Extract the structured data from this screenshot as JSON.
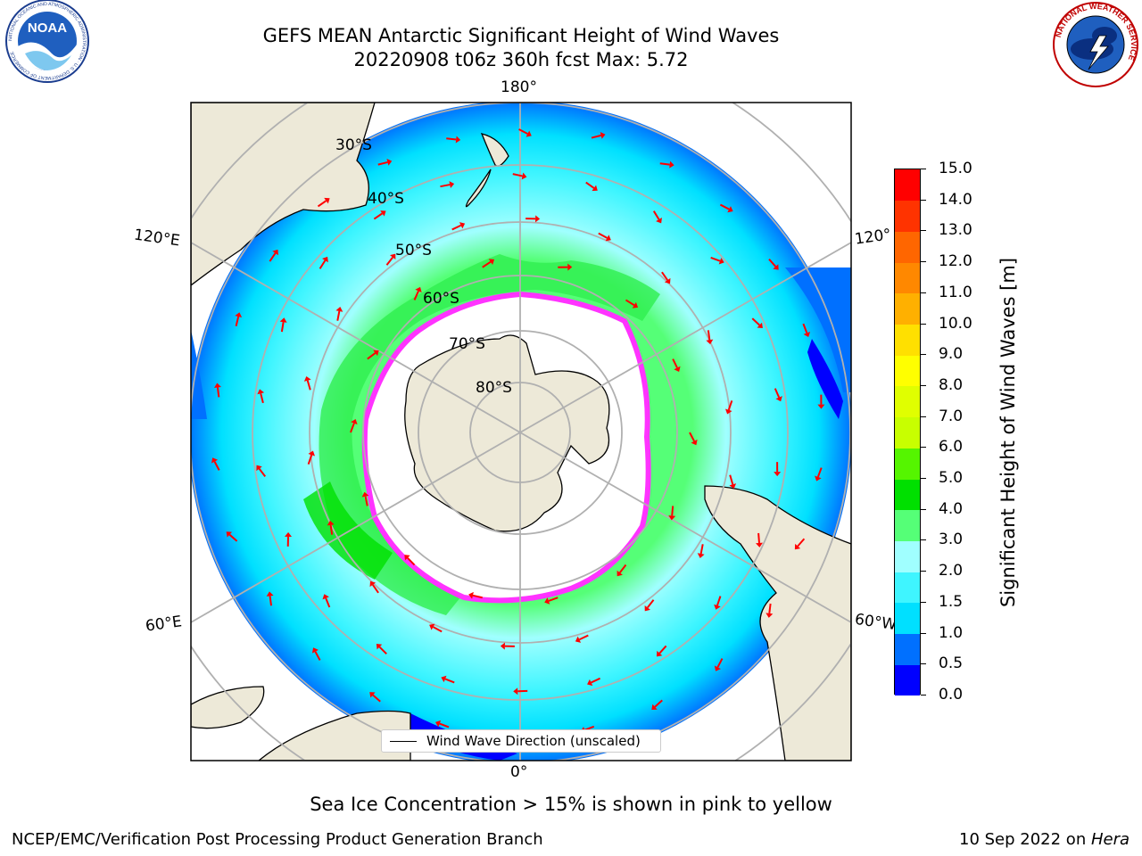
{
  "header": {
    "title_line1": "GEFS MEAN Antarctic Significant Height of Wind Waves",
    "title_line2": "20220908 t06z 360h fcst   Max: 5.72"
  },
  "logos": {
    "noaa": {
      "text": "NOAA",
      "ring_text": "NATIONAL OCEANIC AND ATMOSPHERIC ADMINISTRATION · U.S. DEPARTMENT OF COMMERCE"
    },
    "nws": {
      "ring_text": "NATIONAL WEATHER SERVICE"
    }
  },
  "map": {
    "projection": "south-polar-stereographic",
    "longitude_labels": {
      "top": "180°",
      "bottom": "0°",
      "upper_left": "120°E",
      "upper_right": "120°",
      "lower_left": "60°E",
      "lower_right": "60°W"
    },
    "latitude_labels": [
      "30°S",
      "40°S",
      "50°S",
      "60°S",
      "70°S",
      "80°S"
    ],
    "legend": {
      "label": "Wind Wave Direction (unscaled)"
    },
    "arrow_color": "#ff0000",
    "sea_ice_color": "#ff33ff",
    "land_color": "#ede9d8"
  },
  "colorbar": {
    "title": "Significant Height of Wind Waves [m]",
    "ticks": [
      "0.0",
      "0.5",
      "1.0",
      "1.5",
      "2.0",
      "3.0",
      "4.0",
      "5.0",
      "6.0",
      "7.0",
      "8.0",
      "9.0",
      "10.0",
      "11.0",
      "12.0",
      "13.0",
      "14.0",
      "15.0"
    ],
    "colors": [
      "#0000ff",
      "#0070ff",
      "#00e0ff",
      "#3ff5ff",
      "#a0ffff",
      "#55ff77",
      "#00e000",
      "#55f500",
      "#c8ff00",
      "#e0ff00",
      "#ffff00",
      "#ffe000",
      "#ffb000",
      "#ff8800",
      "#ff6600",
      "#ff3300",
      "#ff0000"
    ]
  },
  "footer": {
    "note": "Sea Ice Concentration > 15% is shown in pink to yellow",
    "credit_left": "NCEP/EMC/Verification Post Processing Product Generation Branch",
    "credit_right_date": "10 Sep 2022 on ",
    "credit_right_machine": "Hera"
  }
}
